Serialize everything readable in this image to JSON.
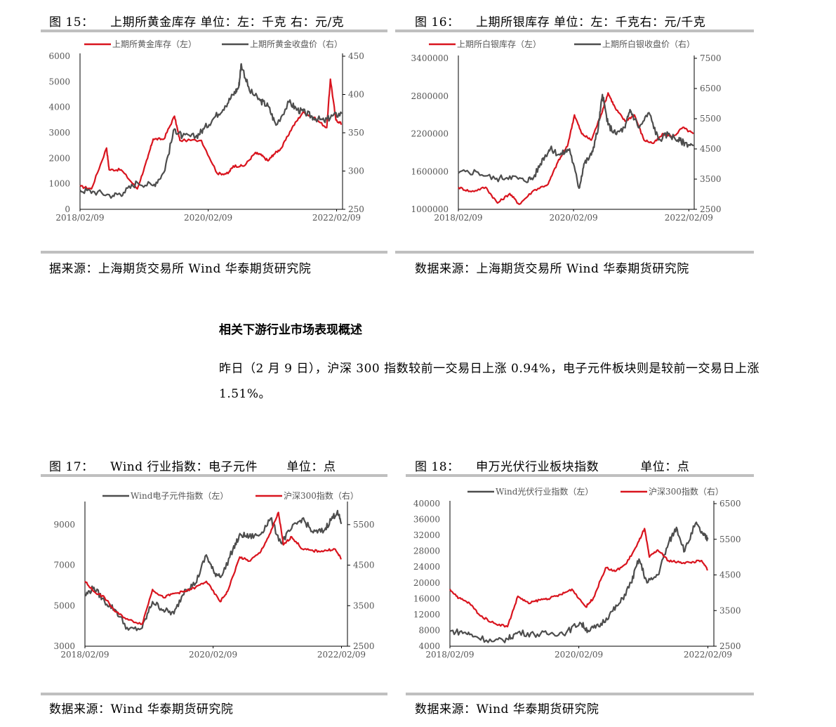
{
  "fig15": {
    "title": "图 15：    上期所黄金库存 单位：左：千克 右：元/克",
    "source": "据来源：上海期货交易所 Wind 华泰期货研究院"
  },
  "fig16": {
    "title": "图 16：    上期所银库存 单位：左：千克右：元/千克",
    "source": "数据来源：上海期货交易所 Wind 华泰期货研究院"
  },
  "fig17": {
    "title": "图 17：    Wind 行业指数：电子元件       单位：点",
    "source": "数据来源：Wind 华泰期货研究院"
  },
  "fig18": {
    "title": "图 18：    申万光伏行业板块指数          单位：点",
    "source": "数据来源：Wind 华泰期货研究院"
  },
  "section": {
    "heading": "相关下游行业市场表现概述",
    "paragraph": "昨日（2 月 9 日），沪深 300 指数较前一交易日上涨 0.94%，电子元件板块则是较前一交易日上涨 1.51%。"
  },
  "colors": {
    "red": "#d9141e",
    "gray": "#4d4d4d",
    "rule": "#bfbfbf"
  },
  "chart_data": [
    {
      "type": "line",
      "x_ticks": [
        "2018/02/09",
        "2020/02/09",
        "2022/02/09"
      ],
      "x_range": [
        "2018/02/09",
        "2022/03/15"
      ],
      "left_axis": {
        "ticks": [
          "0",
          "1000",
          "2000",
          "3000",
          "4000",
          "5000",
          "6000"
        ],
        "range": [
          0,
          6000
        ]
      },
      "right_axis": {
        "ticks": [
          "250",
          "300",
          "350",
          "400",
          "450"
        ],
        "range": [
          250,
          450
        ]
      },
      "series": [
        {
          "name": "上期所黄金库存（左）",
          "color": "red",
          "axis": "left",
          "x": [
            "2018/02/09",
            "2018/04/15",
            "2018/07/10",
            "2018/07/25",
            "2018/10/01",
            "2019/01/01",
            "2019/03/01",
            "2019/04/01",
            "2019/06/01",
            "2019/08/01",
            "2019/09/01",
            "2020/01/01",
            "2020/04/01",
            "2020/06/01",
            "2020/07/01",
            "2020/09/01",
            "2020/11/01",
            "2020/12/01",
            "2021/01/15",
            "2021/02/15",
            "2021/04/01",
            "2021/06/01",
            "2021/08/01",
            "2021/10/01",
            "2021/12/15",
            "2022/01/05",
            "2022/02/05",
            "2022/03/10"
          ],
          "values": [
            900,
            800,
            2400,
            1550,
            1550,
            800,
            2000,
            2750,
            2750,
            3650,
            2700,
            2700,
            1400,
            1400,
            1700,
            1700,
            2200,
            2150,
            1900,
            2150,
            2400,
            3200,
            3800,
            3600,
            3200,
            5100,
            3500,
            3350
          ]
        },
        {
          "name": "上期所黄金收盘价（右）",
          "color": "gray",
          "axis": "right",
          "x": [
            "2018/02/09",
            "2018/05/01",
            "2018/08/15",
            "2018/10/15",
            "2019/01/01",
            "2019/04/01",
            "2019/06/01",
            "2019/08/01",
            "2019/09/15",
            "2019/12/01",
            "2020/01/15",
            "2020/03/15",
            "2020/05/15",
            "2020/07/01",
            "2020/08/01",
            "2020/08/15",
            "2020/10/01",
            "2020/12/01",
            "2021/01/15",
            "2021/03/01",
            "2021/05/15",
            "2021/07/01",
            "2021/08/15",
            "2021/10/01",
            "2021/12/01",
            "2022/01/15",
            "2022/03/10"
          ],
          "values": [
            275,
            273,
            268,
            272,
            285,
            281,
            298,
            355,
            345,
            345,
            355,
            370,
            385,
            400,
            410,
            440,
            405,
            392,
            385,
            360,
            390,
            380,
            376,
            370,
            365,
            372,
            375
          ]
        }
      ]
    },
    {
      "type": "line",
      "x_ticks": [
        "2018/02/09",
        "2020/02/09",
        "2022/02/09"
      ],
      "x_range": [
        "2018/02/09",
        "2022/03/15"
      ],
      "left_axis": {
        "ticks": [
          "1000000",
          "1600000",
          "2200000",
          "2800000",
          "3400000"
        ],
        "range": [
          1000000,
          3400000
        ]
      },
      "right_axis": {
        "ticks": [
          "2500",
          "3500",
          "4500",
          "5500",
          "6500",
          "7500"
        ],
        "range": [
          2500,
          7500
        ]
      },
      "series": [
        {
          "name": "上期所白银库存（左）",
          "color": "red",
          "axis": "left",
          "x": [
            "2018/02/09",
            "2018/05/01",
            "2018/08/01",
            "2018/10/15",
            "2019/01/01",
            "2019/03/01",
            "2019/06/01",
            "2019/09/01",
            "2019/11/01",
            "2020/01/01",
            "2020/02/15",
            "2020/04/01",
            "2020/06/01",
            "2020/08/01",
            "2020/09/15",
            "2020/11/01",
            "2021/01/01",
            "2021/03/01",
            "2021/05/01",
            "2021/07/01",
            "2021/09/01",
            "2021/11/01",
            "2022/01/01",
            "2022/03/10"
          ],
          "values": [
            1350000,
            1280000,
            1350000,
            1100000,
            1250000,
            1080000,
            1300000,
            1400000,
            1750000,
            2000000,
            2500000,
            2200000,
            2100000,
            2500000,
            2850000,
            2600000,
            2400000,
            2500000,
            2100000,
            2050000,
            2200000,
            2150000,
            2300000,
            2200000
          ]
        },
        {
          "name": "上期所白银收盘价（右）",
          "color": "gray",
          "axis": "right",
          "x": [
            "2018/02/09",
            "2018/06/01",
            "2018/10/01",
            "2019/01/01",
            "2019/04/01",
            "2019/06/01",
            "2019/08/01",
            "2019/09/15",
            "2019/11/15",
            "2020/01/15",
            "2020/03/15",
            "2020/04/15",
            "2020/06/01",
            "2020/07/15",
            "2020/08/10",
            "2020/09/15",
            "2020/11/01",
            "2021/01/01",
            "2021/02/01",
            "2021/04/01",
            "2021/06/01",
            "2021/08/01",
            "2021/10/01",
            "2021/12/01",
            "2022/01/15",
            "2022/03/10"
          ],
          "values": [
            3700,
            3750,
            3500,
            3600,
            3450,
            3550,
            4200,
            4500,
            4300,
            4500,
            3200,
            4000,
            4300,
            5200,
            6300,
            5300,
            5000,
            5200,
            5800,
            5200,
            5700,
            4800,
            5000,
            4800,
            4700,
            4600
          ]
        }
      ]
    },
    {
      "type": "line",
      "x_ticks": [
        "2018/02/09",
        "2020/02/09",
        "2022/02/09"
      ],
      "x_range": [
        "2018/02/09",
        "2022/03/15"
      ],
      "left_axis": {
        "ticks": [
          "3000",
          "5000",
          "7000",
          "9000"
        ],
        "range": [
          3000,
          10000
        ]
      },
      "right_axis": {
        "ticks": [
          "2500",
          "3500",
          "4500",
          "5500"
        ],
        "range": [
          2500,
          6000
        ]
      },
      "series": [
        {
          "name": "Wind电子元件指数（左）",
          "color": "gray",
          "axis": "left",
          "x": [
            "2018/02/09",
            "2018/04/01",
            "2018/06/01",
            "2018/08/01",
            "2018/10/15",
            "2019/01/01",
            "2019/03/01",
            "2019/05/01",
            "2019/07/01",
            "2019/09/01",
            "2019/11/01",
            "2020/01/01",
            "2020/02/15",
            "2020/04/01",
            "2020/06/01",
            "2020/07/15",
            "2020/09/01",
            "2020/11/01",
            "2021/01/01",
            "2021/03/01",
            "2021/05/01",
            "2021/07/01",
            "2021/09/01",
            "2021/11/01",
            "2021/12/15",
            "2022/01/15",
            "2022/02/09"
          ],
          "values": [
            5500,
            5900,
            5200,
            4800,
            3800,
            3900,
            5200,
            4800,
            4600,
            5800,
            6100,
            7500,
            6600,
            6500,
            7800,
            8500,
            8400,
            8500,
            9300,
            8100,
            8800,
            9300,
            8600,
            8700,
            9300,
            9600,
            9100
          ]
        },
        {
          "name": "沪深300指数（右）",
          "color": "red",
          "axis": "right",
          "x": [
            "2018/02/09",
            "2018/04/01",
            "2018/06/01",
            "2018/08/01",
            "2018/10/15",
            "2019/01/01",
            "2019/03/01",
            "2019/05/01",
            "2019/07/01",
            "2019/09/01",
            "2019/11/01",
            "2020/01/01",
            "2020/03/20",
            "2020/05/01",
            "2020/07/10",
            "2020/09/01",
            "2020/11/01",
            "2021/01/01",
            "2021/02/15",
            "2021/03/15",
            "2021/05/01",
            "2021/07/01",
            "2021/09/01",
            "2021/11/01",
            "2022/01/01",
            "2022/02/09"
          ],
          "values": [
            4100,
            3850,
            3700,
            3350,
            3150,
            3050,
            3900,
            3700,
            3800,
            3850,
            3950,
            4100,
            3600,
            3850,
            4700,
            4600,
            4800,
            5300,
            5800,
            5000,
            5200,
            4900,
            4850,
            4850,
            4900,
            4650
          ]
        }
      ]
    },
    {
      "type": "line",
      "x_ticks": [
        "2018/02/09",
        "2020/02/09",
        "2022/02/09"
      ],
      "x_range": [
        "2018/02/09",
        "2022/03/15"
      ],
      "left_axis": {
        "ticks": [
          "4000",
          "8000",
          "12000",
          "16000",
          "20000",
          "24000",
          "28000",
          "32000",
          "36000",
          "40000"
        ],
        "range": [
          4000,
          40000
        ]
      },
      "right_axis": {
        "ticks": [
          "2500",
          "3500",
          "4500",
          "5500",
          "6500"
        ],
        "range": [
          2500,
          6500
        ]
      },
      "series": [
        {
          "name": "Wind光伏行业指数（左）",
          "color": "gray",
          "axis": "left",
          "x": [
            "2018/02/09",
            "2018/05/01",
            "2018/07/01",
            "2018/10/15",
            "2019/01/01",
            "2019/03/01",
            "2019/06/01",
            "2019/09/01",
            "2019/12/01",
            "2020/02/15",
            "2020/04/01",
            "2020/06/01",
            "2020/08/01",
            "2020/10/01",
            "2020/12/01",
            "2021/01/15",
            "2021/03/01",
            "2021/05/01",
            "2021/07/01",
            "2021/08/15",
            "2021/10/01",
            "2021/12/01",
            "2022/01/15",
            "2022/02/09"
          ],
          "values": [
            7800,
            7500,
            6500,
            5200,
            5800,
            7500,
            7000,
            7200,
            7500,
            10000,
            8000,
            9000,
            12000,
            15000,
            20000,
            26000,
            20000,
            22000,
            30000,
            34000,
            28000,
            35000,
            32000,
            31000
          ]
        },
        {
          "name": "沪深300指数（右）",
          "color": "red",
          "axis": "right",
          "x": [
            "2018/02/09",
            "2018/04/01",
            "2018/06/01",
            "2018/08/01",
            "2018/10/15",
            "2019/01/01",
            "2019/03/01",
            "2019/05/01",
            "2019/07/01",
            "2019/09/01",
            "2019/11/01",
            "2020/01/01",
            "2020/03/20",
            "2020/05/01",
            "2020/07/10",
            "2020/09/01",
            "2020/11/01",
            "2021/01/01",
            "2021/02/15",
            "2021/03/15",
            "2021/05/01",
            "2021/07/01",
            "2021/09/01",
            "2021/11/01",
            "2022/01/01",
            "2022/02/09"
          ],
          "values": [
            4100,
            3850,
            3700,
            3350,
            3150,
            3050,
            3900,
            3700,
            3800,
            3850,
            3950,
            4100,
            3600,
            3850,
            4700,
            4600,
            4800,
            5300,
            5800,
            5000,
            5200,
            4900,
            4850,
            4850,
            4900,
            4650
          ]
        }
      ]
    }
  ]
}
